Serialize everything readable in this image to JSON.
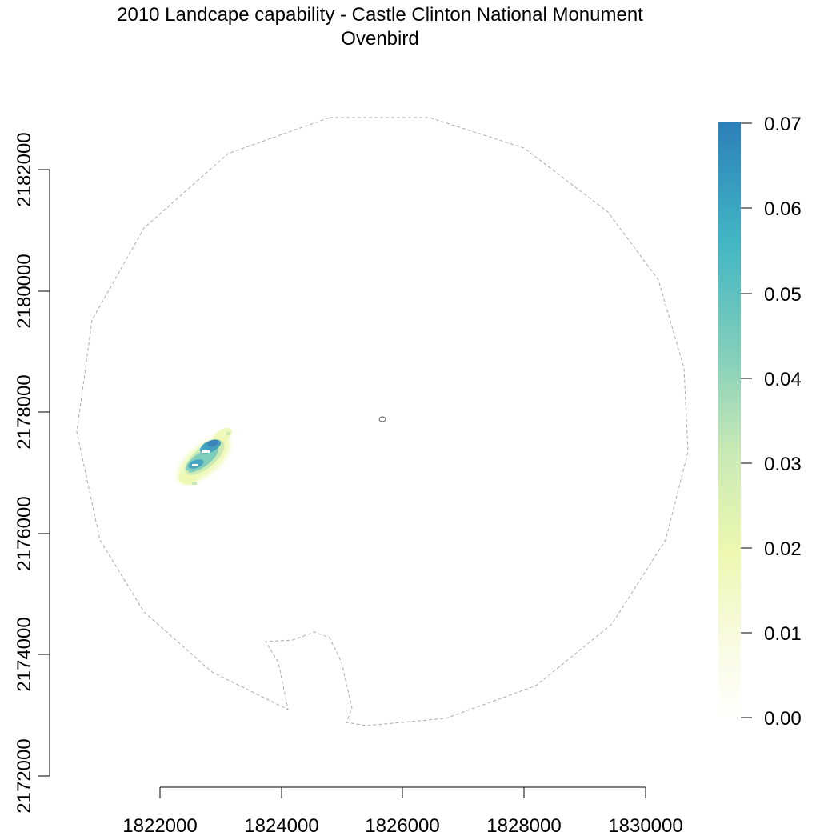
{
  "title": {
    "line1": "2010 Landcape capability - Castle Clinton National Monument",
    "line2": "Ovenbird"
  },
  "map": {
    "x_ticks": [
      "1822000",
      "1824000",
      "1826000",
      "1828000",
      "1830000"
    ],
    "y_ticks": [
      "2172000",
      "2174000",
      "2176000",
      "2178000",
      "2180000",
      "2182000"
    ],
    "boundary_color": "#aaaaaa",
    "habitat_patch": {
      "location": "1822500-1823200, 2176900-2177700",
      "colors": [
        "#eef7b0",
        "#bfe4a8",
        "#7fcdbb",
        "#41a0bd",
        "#3d84bb"
      ]
    }
  },
  "legend": {
    "labels": [
      "0.07",
      "0.06",
      "0.05",
      "0.04",
      "0.03",
      "0.02",
      "0.01",
      "0.00"
    ],
    "colors": [
      "#ffffff",
      "#f7fbdc",
      "#edf8b1",
      "#c7e9b4",
      "#7fcdbb",
      "#41b6c4",
      "#2c7fb8"
    ],
    "min": 0.0,
    "max": 0.07
  }
}
